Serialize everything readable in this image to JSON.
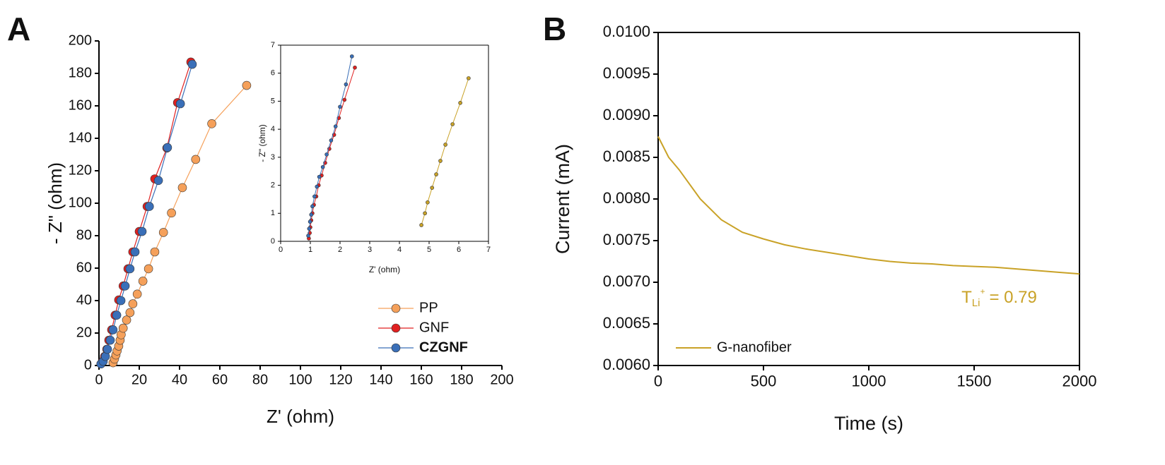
{
  "chart_data": [
    {
      "type": "scatter",
      "panel_label": "A",
      "xlabel": "Z' (ohm)",
      "ylabel": "- Z\" (ohm)",
      "xlim": [
        0,
        200
      ],
      "xticks": [
        0,
        20,
        40,
        60,
        80,
        100,
        120,
        140,
        160,
        180,
        200
      ],
      "ylim": [
        0,
        200
      ],
      "yticks": [
        0,
        20,
        40,
        60,
        80,
        100,
        120,
        140,
        160,
        180,
        200
      ],
      "legend": "lower right",
      "series": [
        {
          "name": "PP",
          "color": "#f5a05a",
          "x": [
            7,
            7.7,
            8.4,
            9,
            9.8,
            10.5,
            11,
            12,
            13.7,
            15.4,
            16.8,
            19,
            21.8,
            24.6,
            27.7,
            32,
            36,
            41.4,
            48,
            56,
            73.3
          ],
          "y": [
            1.7,
            4,
            6.5,
            9,
            12,
            15.6,
            19,
            23,
            28,
            32.6,
            38,
            44,
            52,
            59.6,
            70,
            82,
            94,
            109.6,
            127,
            149,
            172.6
          ]
        },
        {
          "name": "GNF",
          "color": "#e02020",
          "x": [
            1,
            1.8,
            2.8,
            3.9,
            4.9,
            6.3,
            8,
            9.8,
            12,
            14.4,
            16.8,
            20,
            23.9,
            27.7,
            33.7,
            39,
            45.6
          ],
          "y": [
            1,
            2.6,
            5.6,
            10,
            15.6,
            22,
            31,
            40.4,
            49,
            59.6,
            70,
            82.6,
            98,
            115,
            134,
            162,
            187
          ]
        },
        {
          "name": "CZGNF",
          "color": "#3a6fb8",
          "x": [
            1,
            2.1,
            3.2,
            4.2,
            5.6,
            7,
            8.8,
            10.9,
            13,
            15.4,
            17.9,
            21.4,
            25,
            29.5,
            34,
            40.4,
            46.3
          ],
          "y": [
            1,
            2.6,
            5.6,
            10,
            15.6,
            22,
            31,
            40,
            49,
            59.6,
            70,
            82.6,
            98,
            114,
            134.3,
            161.3,
            185.6
          ]
        }
      ]
    },
    {
      "type": "scatter",
      "xlabel": "Z' (ohm)",
      "ylabel": "- Z\" (ohm)",
      "xlim": [
        0,
        7
      ],
      "xticks": [
        0,
        1,
        2,
        3,
        4,
        5,
        6,
        7
      ],
      "ylim": [
        0,
        7
      ],
      "yticks": [
        0,
        1,
        2,
        3,
        4,
        5,
        6,
        7
      ],
      "series": [
        {
          "color": "#c9a227",
          "x": [
            4.74,
            4.86,
            4.95,
            5.1,
            5.24,
            5.38,
            5.55,
            5.79,
            6.05,
            6.33
          ],
          "y": [
            0.58,
            1.0,
            1.39,
            1.91,
            2.39,
            2.87,
            3.45,
            4.18,
            4.94,
            5.82
          ]
        },
        {
          "color": "#e02020",
          "x": [
            0.95,
            0.98,
            1.0,
            1.03,
            1.07,
            1.12,
            1.2,
            1.28,
            1.38,
            1.5,
            1.64,
            1.8,
            1.96,
            2.15,
            2.5
          ],
          "y": [
            0.1,
            0.3,
            0.5,
            0.75,
            1.0,
            1.3,
            1.6,
            2.0,
            2.35,
            2.8,
            3.3,
            3.8,
            4.4,
            5.05,
            6.2
          ]
        },
        {
          "color": "#3a6fb8",
          "x": [
            0.93,
            0.96,
            0.99,
            1.03,
            1.07,
            1.14,
            1.22,
            1.3,
            1.42,
            1.55,
            1.7,
            1.85,
            2.0,
            2.2,
            2.4
          ],
          "y": [
            0.2,
            0.45,
            0.7,
            0.95,
            1.25,
            1.6,
            1.95,
            2.3,
            2.65,
            3.1,
            3.6,
            4.1,
            4.8,
            5.6,
            6.6
          ]
        }
      ]
    },
    {
      "type": "line",
      "panel_label": "B",
      "xlabel": "Time (s)",
      "ylabel": "Current (mA)",
      "xlim": [
        0,
        2000
      ],
      "xticks": [
        0,
        500,
        1000,
        1500,
        2000
      ],
      "ylim": [
        0.006,
        0.01
      ],
      "yticks": [
        {
          "value": 0.006,
          "label": "0.0060"
        },
        {
          "value": 0.0065,
          "label": "0.0065"
        },
        {
          "value": 0.007,
          "label": "0.0070"
        },
        {
          "value": 0.0075,
          "label": "0.0075"
        },
        {
          "value": 0.008,
          "label": "0.0080"
        },
        {
          "value": 0.0085,
          "label": "0.0085"
        },
        {
          "value": 0.009,
          "label": "0.0090"
        },
        {
          "value": 0.0095,
          "label": "0.0095"
        },
        {
          "value": 0.01,
          "label": "0.0100"
        }
      ],
      "legend": "lower left",
      "annotation": {
        "base": "T",
        "subscript": "Li",
        "superscript": "+",
        "text": "= 0.79",
        "color": "#c9a227"
      },
      "x": [
        0,
        50,
        100,
        200,
        300,
        400,
        500,
        600,
        700,
        800,
        900,
        1000,
        1100,
        1200,
        1300,
        1400,
        1500,
        1600,
        1700,
        1800,
        1900,
        2000
      ],
      "series": [
        {
          "name": "G-nanofiber",
          "color": "#c9a227",
          "values": [
            0.00875,
            0.0085,
            0.00835,
            0.008,
            0.00775,
            0.0076,
            0.00752,
            0.00745,
            0.0074,
            0.00736,
            0.00732,
            0.00728,
            0.00725,
            0.00723,
            0.00722,
            0.0072,
            0.00719,
            0.00718,
            0.00716,
            0.00714,
            0.00712,
            0.0071
          ]
        }
      ]
    }
  ]
}
